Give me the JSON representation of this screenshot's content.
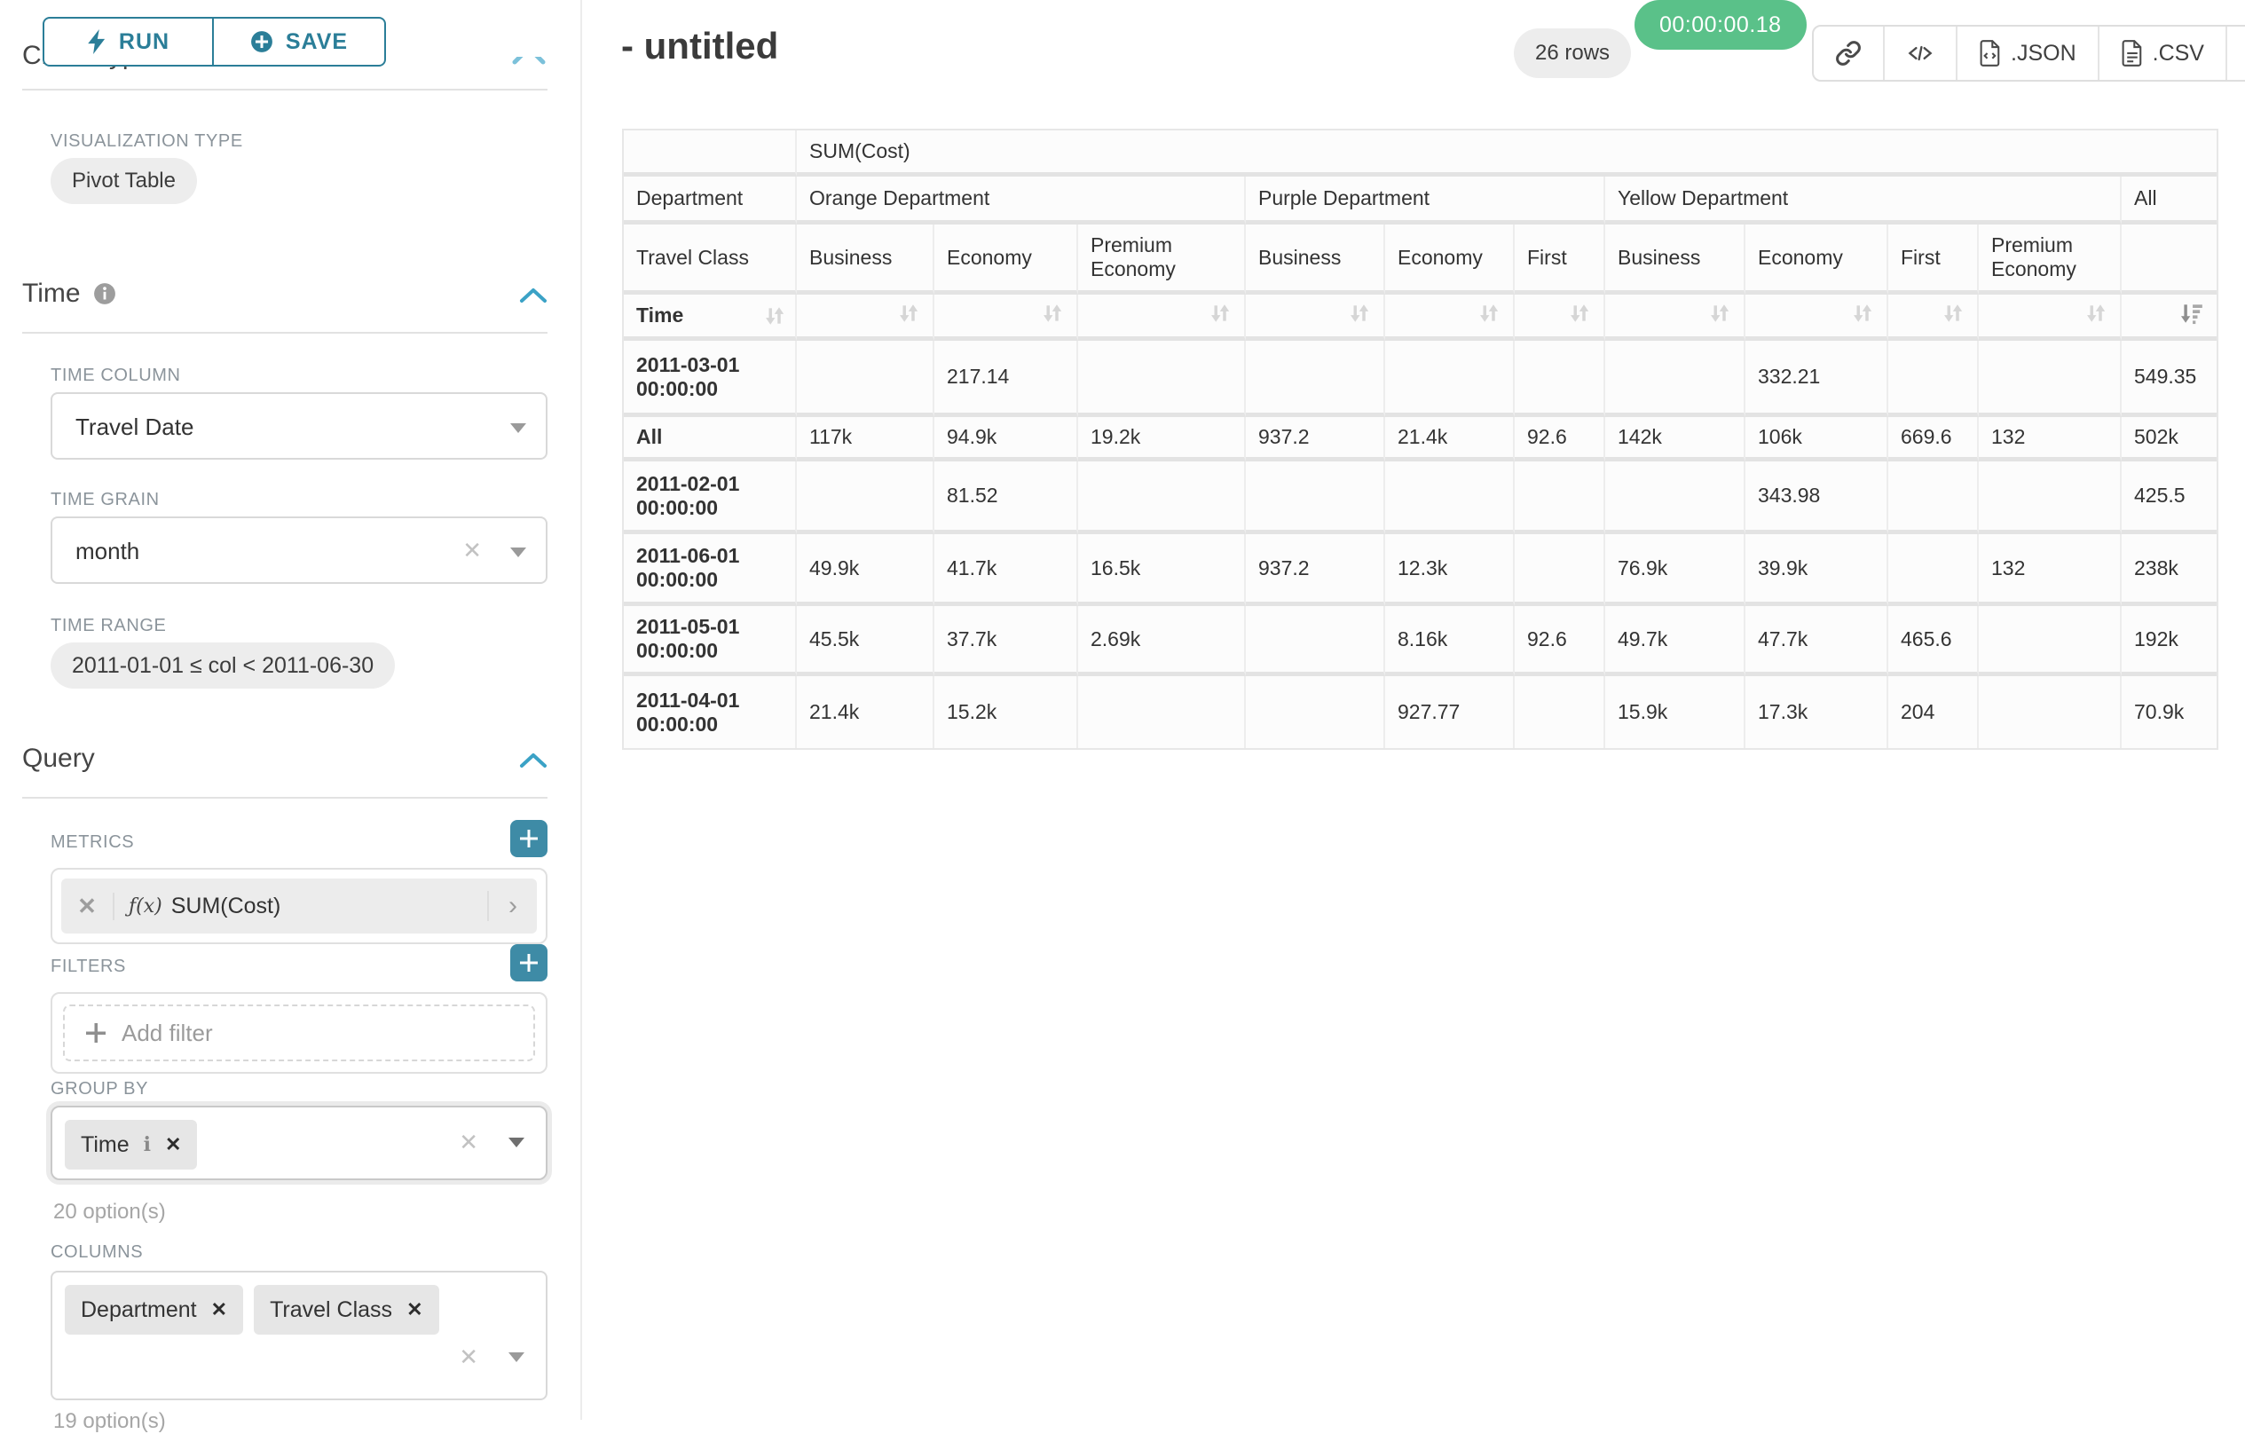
{
  "sidebar": {
    "run_label": "RUN",
    "save_label": "SAVE",
    "chart_type_heading": "Chart Type",
    "viz_type": {
      "label": "VISUALIZATION TYPE",
      "value": "Pivot Table"
    },
    "time_section": {
      "title": "Time",
      "time_column": {
        "label": "TIME COLUMN",
        "value": "Travel Date"
      },
      "time_grain": {
        "label": "TIME GRAIN",
        "value": "month"
      },
      "time_range": {
        "label": "TIME RANGE",
        "value": "2011-01-01 ≤ col < 2011-06-30"
      }
    },
    "query_section": {
      "title": "Query",
      "metrics": {
        "label": "METRICS",
        "fx_icon": "ƒ(x)",
        "value": "SUM(Cost)"
      },
      "filters": {
        "label": "FILTERS",
        "placeholder": "Add filter"
      },
      "group_by": {
        "label": "GROUP BY",
        "chips": [
          "Time"
        ],
        "hint": "20 option(s)"
      },
      "columns": {
        "label": "COLUMNS",
        "chips": [
          "Department",
          "Travel Class"
        ],
        "hint": "19 option(s)"
      }
    }
  },
  "header": {
    "title": "- untitled",
    "row_count": "26 rows",
    "timer": "00:00:00.18",
    "json_label": ".JSON",
    "csv_label": ".CSV"
  },
  "icons": {
    "run": "lightning-icon",
    "save": "plus-circle-icon",
    "info": "info-icon",
    "collapse": "chevron-up-icon",
    "share": "link-icon",
    "embed": "code-icon",
    "menu": "hamburger-icon",
    "sort": "sort-up-down-icon",
    "sort_active": "sort-descending-icon"
  },
  "colors": {
    "teal": "#2b7e98",
    "teal_button": "#3e8ba6",
    "blue_chevron": "#3ba2c6",
    "green_badge": "#5ac189",
    "grid_line": "#e3e3e3",
    "cell_bg": "#fcfcfc"
  },
  "pivot": {
    "metric_header": "SUM(Cost)",
    "department_label": "Department",
    "travel_class_label": "Travel Class",
    "time_label": "Time",
    "col_groups": [
      {
        "name": "Orange Department",
        "cols": [
          "Business",
          "Economy",
          "Premium Economy"
        ]
      },
      {
        "name": "Purple Department",
        "cols": [
          "Business",
          "Economy",
          "First"
        ]
      },
      {
        "name": "Yellow Department",
        "cols": [
          "Business",
          "Economy",
          "First",
          "Premium Economy"
        ]
      },
      {
        "name": "All",
        "cols": [
          ""
        ]
      }
    ],
    "rows": [
      {
        "label": "2011-03-01 00:00:00",
        "values": [
          "",
          "217.14",
          "",
          "",
          "",
          "",
          "",
          "332.21",
          "",
          "",
          "549.35"
        ]
      },
      {
        "label": "All",
        "values": [
          "117k",
          "94.9k",
          "19.2k",
          "937.2",
          "21.4k",
          "92.6",
          "142k",
          "106k",
          "669.6",
          "132",
          "502k"
        ]
      },
      {
        "label": "2011-02-01 00:00:00",
        "values": [
          "",
          "81.52",
          "",
          "",
          "",
          "",
          "",
          "343.98",
          "",
          "",
          "425.5"
        ]
      },
      {
        "label": "2011-06-01 00:00:00",
        "values": [
          "49.9k",
          "41.7k",
          "16.5k",
          "937.2",
          "12.3k",
          "",
          "76.9k",
          "39.9k",
          "",
          "132",
          "238k"
        ]
      },
      {
        "label": "2011-05-01 00:00:00",
        "values": [
          "45.5k",
          "37.7k",
          "2.69k",
          "",
          "8.16k",
          "92.6",
          "49.7k",
          "47.7k",
          "465.6",
          "",
          "192k"
        ]
      },
      {
        "label": "2011-04-01 00:00:00",
        "values": [
          "21.4k",
          "15.2k",
          "",
          "",
          "927.77",
          "",
          "15.9k",
          "17.3k",
          "204",
          "",
          "70.9k"
        ]
      }
    ]
  }
}
